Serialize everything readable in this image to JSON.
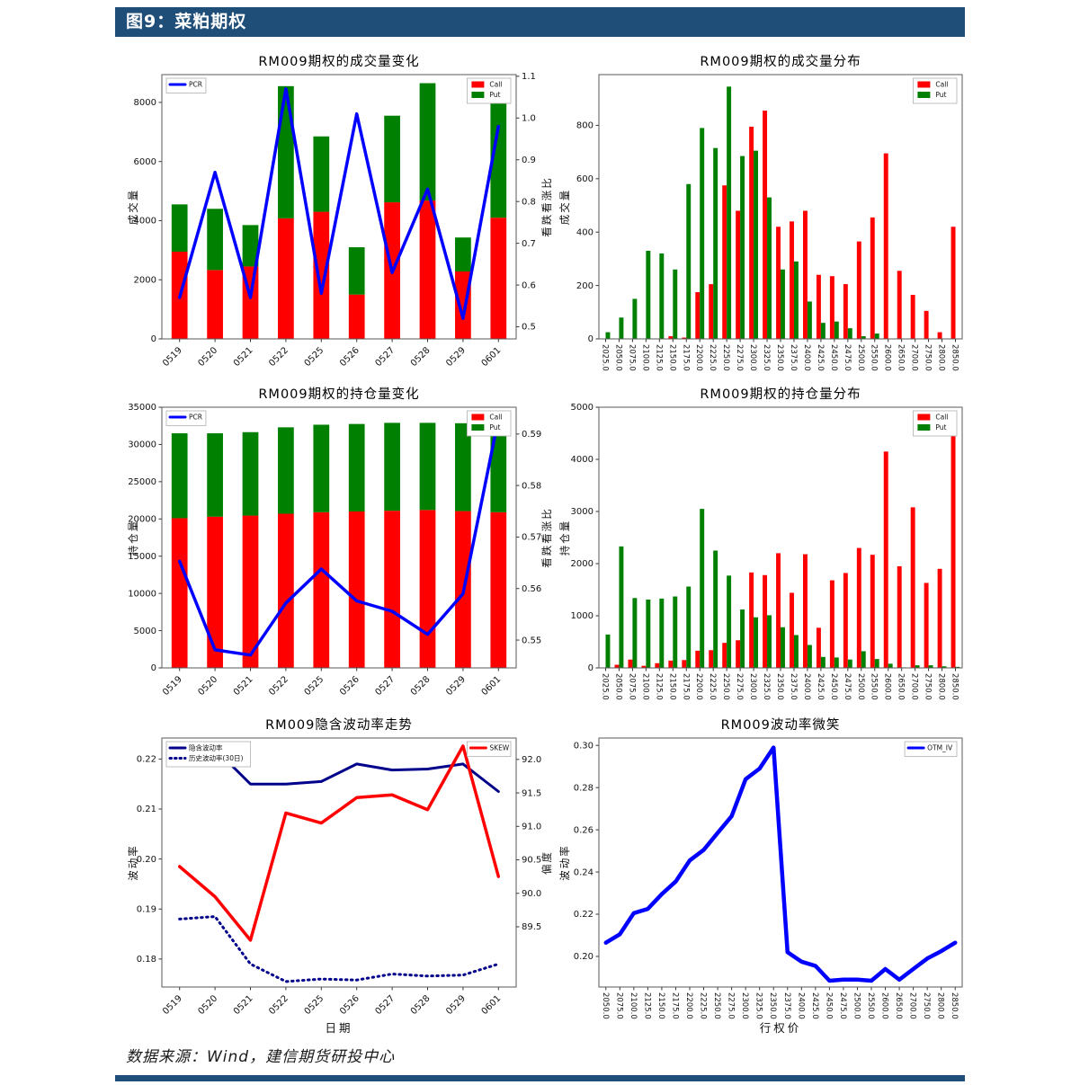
{
  "page": {
    "header_title": "图9：菜粕期权",
    "source_text": "数据来源：Wind，建信期货研投中心",
    "header_bg": "#1F4E79"
  },
  "colors": {
    "call": "#FF0000",
    "put": "#008000",
    "pcr": "#0000FF",
    "iv": "#00008B",
    "skew": "#FF0000",
    "otm_iv": "#0000FF"
  },
  "chart_data": [
    {
      "id": "volume-change",
      "type": "bar",
      "title": "RM009期权的成交量变化",
      "ylabel_left": "成交量",
      "ylabel_right": "看跌看涨比",
      "stacked": true,
      "x_rotation": -45,
      "categories": [
        "0519",
        "0520",
        "0521",
        "0522",
        "0525",
        "0526",
        "0527",
        "0528",
        "0529",
        "0601"
      ],
      "series": [
        {
          "name": "Call",
          "kind": "bar",
          "color": "#FF0000",
          "values": [
            2950,
            2330,
            2450,
            4080,
            4300,
            1500,
            4620,
            4680,
            2280,
            4100
          ]
        },
        {
          "name": "Put",
          "kind": "bar",
          "color": "#008000",
          "values": [
            1600,
            2070,
            1400,
            4470,
            2550,
            1600,
            2930,
            3970,
            1150,
            4050
          ]
        },
        {
          "name": "PCR",
          "kind": "line",
          "axis": "right",
          "color": "#0000FF",
          "lw": 3.5,
          "values": [
            0.57,
            0.87,
            0.57,
            1.07,
            0.58,
            1.01,
            0.63,
            0.83,
            0.52,
            0.98
          ]
        }
      ],
      "axis_left": {
        "min": 0,
        "max": 8940,
        "ticks": [
          0,
          2000,
          4000,
          6000,
          8000
        ],
        "labels": [
          "0",
          "2000",
          "4000",
          "6000",
          "8000"
        ]
      },
      "axis_right": {
        "min": 0.471,
        "max": 1.104,
        "ticks": [
          0.5,
          0.6,
          0.7,
          0.8,
          0.9,
          1.0,
          1.1
        ],
        "labels": [
          "0.5",
          "0.6",
          "0.7",
          "0.8",
          "0.9",
          "1.0",
          "1.1"
        ]
      },
      "legends": [
        {
          "pos": "tl",
          "series": [
            2
          ]
        },
        {
          "pos": "tr",
          "series": [
            0,
            1
          ]
        }
      ]
    },
    {
      "id": "volume-distribution",
      "type": "bar",
      "title": "RM009期权的成交量分布",
      "ylabel_left": "成交量",
      "stacked": false,
      "x_rotation": 90,
      "categories": [
        "2025.0",
        "2050.0",
        "2075.0",
        "2100.0",
        "2125.0",
        "2150.0",
        "2175.0",
        "2200.0",
        "2225.0",
        "2250.0",
        "2275.0",
        "2300.0",
        "2325.0",
        "2350.0",
        "2375.0",
        "2400.0",
        "2425.0",
        "2450.0",
        "2475.0",
        "2500.0",
        "2550.0",
        "2600.0",
        "2650.0",
        "2700.0",
        "2750.0",
        "2800.0",
        "2850.0"
      ],
      "series": [
        {
          "name": "Call",
          "kind": "bar",
          "color": "#FF0000",
          "values": [
            0,
            0,
            0,
            0,
            0,
            10,
            5,
            175,
            205,
            575,
            480,
            795,
            855,
            420,
            440,
            480,
            240,
            235,
            205,
            365,
            455,
            695,
            255,
            165,
            105,
            25,
            420
          ]
        },
        {
          "name": "Put",
          "kind": "bar",
          "color": "#008000",
          "values": [
            25,
            80,
            150,
            330,
            320,
            260,
            580,
            790,
            715,
            945,
            685,
            705,
            530,
            260,
            290,
            140,
            60,
            65,
            40,
            10,
            20,
            0,
            0,
            0,
            0,
            0,
            0
          ]
        }
      ],
      "axis_left": {
        "min": 0,
        "max": 990,
        "ticks": [
          0,
          200,
          400,
          600,
          800
        ],
        "labels": [
          "0",
          "200",
          "400",
          "600",
          "800"
        ]
      },
      "legends": [
        {
          "pos": "tr",
          "series": [
            0,
            1
          ]
        }
      ]
    },
    {
      "id": "open-interest-change",
      "type": "bar",
      "title": "RM009期权的持仓量变化",
      "ylabel_left": "持仓量",
      "ylabel_right": "看跌看涨比",
      "stacked": true,
      "x_rotation": -45,
      "categories": [
        "0519",
        "0520",
        "0521",
        "0522",
        "0525",
        "0526",
        "0527",
        "0528",
        "0529",
        "0601"
      ],
      "series": [
        {
          "name": "Call",
          "kind": "bar",
          "color": "#FF0000",
          "values": [
            20100,
            20300,
            20450,
            20700,
            20900,
            21000,
            21100,
            21200,
            21050,
            20900
          ]
        },
        {
          "name": "Put",
          "kind": "bar",
          "color": "#008000",
          "values": [
            11400,
            11200,
            11200,
            11600,
            11750,
            11750,
            11800,
            11700,
            11800,
            12050
          ]
        },
        {
          "name": "PCR",
          "kind": "line",
          "axis": "right",
          "color": "#0000FF",
          "lw": 3.5,
          "values": [
            0.5653,
            0.5481,
            0.5471,
            0.5572,
            0.5638,
            0.5576,
            0.5556,
            0.5511,
            0.559,
            0.593
          ]
        }
      ],
      "axis_left": {
        "min": 0,
        "max": 35000,
        "ticks": [
          0,
          5000,
          10000,
          15000,
          20000,
          25000,
          30000,
          35000
        ],
        "labels": [
          "0",
          "5000",
          "10000",
          "15000",
          "20000",
          "25000",
          "30000",
          "35000"
        ]
      },
      "axis_right": {
        "min": 0.5446,
        "max": 0.5952,
        "ticks": [
          0.55,
          0.56,
          0.57,
          0.58,
          0.59
        ],
        "labels": [
          "0.55",
          "0.56",
          "0.57",
          "0.58",
          "0.59"
        ]
      },
      "legends": [
        {
          "pos": "tl",
          "series": [
            2
          ]
        },
        {
          "pos": "tr",
          "series": [
            0,
            1
          ]
        }
      ]
    },
    {
      "id": "open-interest-distribution",
      "type": "bar",
      "title": "RM009期权的持仓量分布",
      "ylabel_left": "持仓量",
      "stacked": false,
      "x_rotation": 90,
      "categories": [
        "2025.0",
        "2050.0",
        "2075.0",
        "2100.0",
        "2125.0",
        "2150.0",
        "2175.0",
        "2200.0",
        "2225.0",
        "2250.0",
        "2275.0",
        "2300.0",
        "2325.0",
        "2350.0",
        "2375.0",
        "2400.0",
        "2425.0",
        "2450.0",
        "2475.0",
        "2500.0",
        "2550.0",
        "2600.0",
        "2650.0",
        "2700.0",
        "2750.0",
        "2800.0",
        "2850.0"
      ],
      "series": [
        {
          "name": "Call",
          "kind": "bar",
          "color": "#FF0000",
          "values": [
            0,
            60,
            160,
            40,
            90,
            140,
            150,
            330,
            340,
            480,
            530,
            1830,
            1780,
            2200,
            1440,
            2180,
            770,
            1680,
            1820,
            2300,
            2170,
            4150,
            1950,
            3080,
            1630,
            1900,
            4750
          ]
        },
        {
          "name": "Put",
          "kind": "bar",
          "color": "#008000",
          "values": [
            640,
            2330,
            1340,
            1310,
            1330,
            1370,
            1560,
            3050,
            2250,
            1770,
            1120,
            970,
            1010,
            780,
            630,
            440,
            210,
            200,
            160,
            320,
            170,
            80,
            10,
            50,
            50,
            30,
            20
          ]
        }
      ],
      "axis_left": {
        "min": 0,
        "max": 5000,
        "ticks": [
          0,
          1000,
          2000,
          3000,
          4000,
          5000
        ],
        "labels": [
          "0",
          "1000",
          "2000",
          "3000",
          "4000",
          "5000"
        ]
      },
      "legends": [
        {
          "pos": "tr",
          "series": [
            0,
            1
          ]
        }
      ]
    },
    {
      "id": "implied-volatility-trend",
      "type": "line",
      "title": "RM009隐含波动率走势",
      "ylabel_left": "波动率",
      "ylabel_right": "偏度",
      "xlabel": "日期",
      "stacked": false,
      "x_rotation": -45,
      "categories": [
        "0519",
        "0520",
        "0521",
        "0522",
        "0525",
        "0526",
        "0527",
        "0528",
        "0529",
        "0601"
      ],
      "series": [
        {
          "name": "隐含波动率",
          "kind": "line",
          "color": "#00008B",
          "lw": 3,
          "values": [
            0.2203,
            0.222,
            0.215,
            0.215,
            0.2155,
            0.219,
            0.2178,
            0.218,
            0.219,
            0.2135
          ]
        },
        {
          "name": "历史波动率(30日)",
          "kind": "line",
          "dashed": true,
          "color": "#00008B",
          "lw": 3,
          "values": [
            0.188,
            0.1885,
            0.179,
            0.1755,
            0.176,
            0.1758,
            0.177,
            0.1766,
            0.1768,
            0.179
          ]
        },
        {
          "name": "SKEW",
          "kind": "line",
          "axis": "right",
          "color": "#FF0000",
          "lw": 3.5,
          "values": [
            90.4,
            89.95,
            89.3,
            91.2,
            91.05,
            91.43,
            91.47,
            91.25,
            92.2,
            90.25
          ]
        }
      ],
      "axis_left": {
        "min": 0.1744,
        "max": 0.2242,
        "ticks": [
          0.18,
          0.19,
          0.2,
          0.21,
          0.22
        ],
        "labels": [
          "0.18",
          "0.19",
          "0.20",
          "0.21",
          "0.22"
        ]
      },
      "axis_right": {
        "min": 88.6,
        "max": 92.32,
        "ticks": [
          89.5,
          90.0,
          90.5,
          91.0,
          91.5,
          92.0
        ],
        "labels": [
          "89.5",
          "90.0",
          "90.5",
          "91.0",
          "91.5",
          "92.0"
        ]
      },
      "legends": [
        {
          "pos": "tl",
          "series": [
            0,
            1
          ]
        },
        {
          "pos": "tr",
          "series": [
            2
          ]
        }
      ]
    },
    {
      "id": "volatility-smile",
      "type": "line",
      "title": "RM009波动率微笑",
      "ylabel_left": "波动率",
      "xlabel": "行权价",
      "stacked": false,
      "x_rotation": 90,
      "categories": [
        "2050.0",
        "2075.0",
        "2100.0",
        "2125.0",
        "2150.0",
        "2175.0",
        "2200.0",
        "2225.0",
        "2250.0",
        "2275.0",
        "2300.0",
        "2325.0",
        "2350.0",
        "2375.0",
        "2400.0",
        "2425.0",
        "2450.0",
        "2475.0",
        "2500.0",
        "2550.0",
        "2600.0",
        "2650.0",
        "2700.0",
        "2750.0",
        "2800.0",
        "2850.0"
      ],
      "series": [
        {
          "name": "OTM_IV",
          "kind": "line",
          "color": "#0000FF",
          "lw": 4.5,
          "values": [
            0.2065,
            0.2105,
            0.2205,
            0.2225,
            0.2295,
            0.2355,
            0.2455,
            0.2505,
            0.2585,
            0.2665,
            0.284,
            0.289,
            0.299,
            0.202,
            0.1975,
            0.1955,
            0.1885,
            0.189,
            0.189,
            0.1885,
            0.194,
            0.189,
            0.194,
            0.199,
            0.2025,
            0.2065
          ]
        }
      ],
      "axis_left": {
        "min": 0.1855,
        "max": 0.3035,
        "ticks": [
          0.2,
          0.22,
          0.24,
          0.26,
          0.28,
          0.3
        ],
        "labels": [
          "0.20",
          "0.22",
          "0.24",
          "0.26",
          "0.28",
          "0.30"
        ]
      },
      "legends": [
        {
          "pos": "tr",
          "series": [
            0
          ]
        }
      ]
    }
  ]
}
